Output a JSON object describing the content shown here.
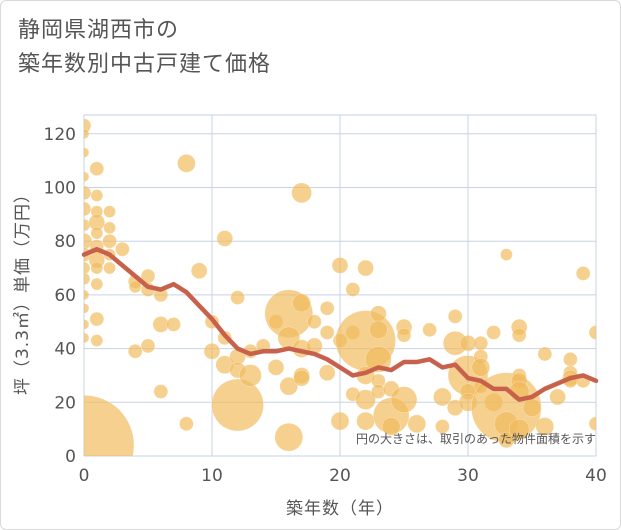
{
  "title_line1": "静岡県湖西市の",
  "title_line2": "築年数別中古戸建て価格",
  "chart_data": {
    "type": "scatter",
    "title": "静岡県湖西市の築年数別中古戸建て価格",
    "xlabel": "築年数（年）",
    "ylabel": "坪（3.3㎡）単価（万円）",
    "xlim": [
      0,
      40
    ],
    "ylim": [
      0,
      127
    ],
    "xticks": [
      "0",
      "10",
      "20",
      "30",
      "40"
    ],
    "yticks": [
      "0",
      "20",
      "40",
      "60",
      "80",
      "100",
      "120"
    ],
    "grid": true,
    "note": "円の大きさは、取引のあった物件面積を示す",
    "colors": {
      "bubble": "#f0b95a",
      "line": "#c8614b",
      "grid": "#c7d3e3",
      "text": "#555555"
    },
    "trend": {
      "name": "平均坪単価",
      "x": [
        0,
        1,
        2,
        3,
        4,
        5,
        6,
        7,
        8,
        9,
        10,
        11,
        12,
        13,
        14,
        15,
        16,
        17,
        18,
        19,
        20,
        21,
        22,
        23,
        24,
        25,
        26,
        27,
        28,
        29,
        30,
        31,
        32,
        33,
        34,
        35,
        36,
        37,
        38,
        39,
        40
      ],
      "y": [
        75,
        77,
        75,
        71,
        67,
        63,
        62,
        64,
        61,
        56,
        51,
        45,
        40,
        38,
        39,
        39,
        40,
        39,
        38,
        36,
        33,
        30,
        31,
        33,
        32,
        35,
        35,
        36,
        33,
        34,
        29,
        28,
        25,
        25,
        21,
        22,
        25,
        27,
        29,
        30,
        28
      ]
    },
    "bubbles": {
      "name": "取引",
      "points": [
        {
          "x": 0,
          "y": 4,
          "size": 50
        },
        {
          "x": 0,
          "y": 123,
          "size": 7
        },
        {
          "x": 0,
          "y": 120,
          "size": 5
        },
        {
          "x": 0,
          "y": 113,
          "size": 5
        },
        {
          "x": 0,
          "y": 104,
          "size": 5
        },
        {
          "x": 0,
          "y": 98,
          "size": 7
        },
        {
          "x": 0,
          "y": 92,
          "size": 7
        },
        {
          "x": 0,
          "y": 86,
          "size": 6
        },
        {
          "x": 0,
          "y": 80,
          "size": 8
        },
        {
          "x": 0,
          "y": 75,
          "size": 7
        },
        {
          "x": 0,
          "y": 70,
          "size": 6
        },
        {
          "x": 0,
          "y": 66,
          "size": 6
        },
        {
          "x": 0,
          "y": 60,
          "size": 5
        },
        {
          "x": 0,
          "y": 55,
          "size": 5
        },
        {
          "x": 0,
          "y": 49,
          "size": 5
        },
        {
          "x": 0,
          "y": 44,
          "size": 5
        },
        {
          "x": 1,
          "y": 107,
          "size": 7
        },
        {
          "x": 1,
          "y": 97,
          "size": 6
        },
        {
          "x": 1,
          "y": 91,
          "size": 6
        },
        {
          "x": 1,
          "y": 87,
          "size": 8
        },
        {
          "x": 1,
          "y": 83,
          "size": 6
        },
        {
          "x": 1,
          "y": 78,
          "size": 7
        },
        {
          "x": 1,
          "y": 73,
          "size": 8
        },
        {
          "x": 1,
          "y": 70,
          "size": 6
        },
        {
          "x": 1,
          "y": 64,
          "size": 6
        },
        {
          "x": 1,
          "y": 51,
          "size": 7
        },
        {
          "x": 1,
          "y": 43,
          "size": 6
        },
        {
          "x": 2,
          "y": 91,
          "size": 6
        },
        {
          "x": 2,
          "y": 85,
          "size": 6
        },
        {
          "x": 2,
          "y": 80,
          "size": 7
        },
        {
          "x": 2,
          "y": 75,
          "size": 6
        },
        {
          "x": 2,
          "y": 70,
          "size": 6
        },
        {
          "x": 3,
          "y": 77,
          "size": 7
        },
        {
          "x": 4,
          "y": 65,
          "size": 7
        },
        {
          "x": 4,
          "y": 63,
          "size": 6
        },
        {
          "x": 4,
          "y": 39,
          "size": 7
        },
        {
          "x": 5,
          "y": 67,
          "size": 7
        },
        {
          "x": 5,
          "y": 62,
          "size": 7
        },
        {
          "x": 5,
          "y": 41,
          "size": 7
        },
        {
          "x": 6,
          "y": 60,
          "size": 7
        },
        {
          "x": 6,
          "y": 49,
          "size": 8
        },
        {
          "x": 6,
          "y": 24,
          "size": 7
        },
        {
          "x": 7,
          "y": 49,
          "size": 7
        },
        {
          "x": 8,
          "y": 109,
          "size": 9
        },
        {
          "x": 8,
          "y": 12,
          "size": 7
        },
        {
          "x": 9,
          "y": 69,
          "size": 8
        },
        {
          "x": 10,
          "y": 50,
          "size": 7
        },
        {
          "x": 10,
          "y": 39,
          "size": 8
        },
        {
          "x": 11,
          "y": 81,
          "size": 8
        },
        {
          "x": 11,
          "y": 44,
          "size": 7
        },
        {
          "x": 11,
          "y": 34,
          "size": 9
        },
        {
          "x": 12,
          "y": 59,
          "size": 7
        },
        {
          "x": 12,
          "y": 37,
          "size": 8
        },
        {
          "x": 12,
          "y": 32,
          "size": 8
        },
        {
          "x": 12,
          "y": 19,
          "size": 26
        },
        {
          "x": 13,
          "y": 39,
          "size": 7
        },
        {
          "x": 13,
          "y": 30,
          "size": 11
        },
        {
          "x": 14,
          "y": 41,
          "size": 7
        },
        {
          "x": 15,
          "y": 50,
          "size": 7
        },
        {
          "x": 15,
          "y": 33,
          "size": 8
        },
        {
          "x": 16,
          "y": 53,
          "size": 24
        },
        {
          "x": 16,
          "y": 44,
          "size": 11
        },
        {
          "x": 16,
          "y": 26,
          "size": 9
        },
        {
          "x": 16,
          "y": 7,
          "size": 14
        },
        {
          "x": 17,
          "y": 98,
          "size": 10
        },
        {
          "x": 17,
          "y": 57,
          "size": 9
        },
        {
          "x": 17,
          "y": 40,
          "size": 9
        },
        {
          "x": 17,
          "y": 30,
          "size": 8
        },
        {
          "x": 17,
          "y": 29,
          "size": 8
        },
        {
          "x": 18,
          "y": 50,
          "size": 7
        },
        {
          "x": 18,
          "y": 41,
          "size": 8
        },
        {
          "x": 19,
          "y": 55,
          "size": 7
        },
        {
          "x": 19,
          "y": 46,
          "size": 7
        },
        {
          "x": 19,
          "y": 31,
          "size": 8
        },
        {
          "x": 20,
          "y": 71,
          "size": 8
        },
        {
          "x": 20,
          "y": 43,
          "size": 7
        },
        {
          "x": 20,
          "y": 13,
          "size": 9
        },
        {
          "x": 21,
          "y": 62,
          "size": 7
        },
        {
          "x": 21,
          "y": 46,
          "size": 7
        },
        {
          "x": 21,
          "y": 23,
          "size": 7
        },
        {
          "x": 22,
          "y": 70,
          "size": 8
        },
        {
          "x": 22,
          "y": 43,
          "size": 30
        },
        {
          "x": 22,
          "y": 30,
          "size": 9
        },
        {
          "x": 22,
          "y": 21,
          "size": 10
        },
        {
          "x": 22,
          "y": 13,
          "size": 9
        },
        {
          "x": 23,
          "y": 53,
          "size": 8
        },
        {
          "x": 23,
          "y": 47,
          "size": 9
        },
        {
          "x": 23,
          "y": 36,
          "size": 13
        },
        {
          "x": 23,
          "y": 28,
          "size": 7
        },
        {
          "x": 23,
          "y": 24,
          "size": 7
        },
        {
          "x": 24,
          "y": 25,
          "size": 8
        },
        {
          "x": 24,
          "y": 15,
          "size": 18
        },
        {
          "x": 24,
          "y": 11,
          "size": 9
        },
        {
          "x": 25,
          "y": 48,
          "size": 8
        },
        {
          "x": 25,
          "y": 45,
          "size": 7
        },
        {
          "x": 25,
          "y": 21,
          "size": 13
        },
        {
          "x": 26,
          "y": 12,
          "size": 9
        },
        {
          "x": 27,
          "y": 47,
          "size": 7
        },
        {
          "x": 28,
          "y": 22,
          "size": 9
        },
        {
          "x": 28,
          "y": 11,
          "size": 7
        },
        {
          "x": 29,
          "y": 52,
          "size": 7
        },
        {
          "x": 29,
          "y": 42,
          "size": 12
        },
        {
          "x": 29,
          "y": 18,
          "size": 8
        },
        {
          "x": 30,
          "y": 42,
          "size": 8
        },
        {
          "x": 30,
          "y": 30,
          "size": 20
        },
        {
          "x": 30,
          "y": 24,
          "size": 8
        },
        {
          "x": 30,
          "y": 20,
          "size": 9
        },
        {
          "x": 31,
          "y": 42,
          "size": 7
        },
        {
          "x": 31,
          "y": 37,
          "size": 7
        },
        {
          "x": 31,
          "y": 33,
          "size": 9
        },
        {
          "x": 31,
          "y": 26,
          "size": 7
        },
        {
          "x": 32,
          "y": 46,
          "size": 7
        },
        {
          "x": 32,
          "y": 20,
          "size": 9
        },
        {
          "x": 33,
          "y": 75,
          "size": 6
        },
        {
          "x": 33,
          "y": 18,
          "size": 35
        },
        {
          "x": 33,
          "y": 12,
          "size": 12
        },
        {
          "x": 33,
          "y": 6,
          "size": 8
        },
        {
          "x": 34,
          "y": 48,
          "size": 8
        },
        {
          "x": 34,
          "y": 45,
          "size": 7
        },
        {
          "x": 34,
          "y": 30,
          "size": 7
        },
        {
          "x": 34,
          "y": 28,
          "size": 8
        },
        {
          "x": 34,
          "y": 24,
          "size": 10
        },
        {
          "x": 34,
          "y": 10,
          "size": 10
        },
        {
          "x": 35,
          "y": 18,
          "size": 9
        },
        {
          "x": 36,
          "y": 38,
          "size": 7
        },
        {
          "x": 36,
          "y": 11,
          "size": 9
        },
        {
          "x": 37,
          "y": 22,
          "size": 8
        },
        {
          "x": 38,
          "y": 36,
          "size": 7
        },
        {
          "x": 38,
          "y": 31,
          "size": 7
        },
        {
          "x": 38,
          "y": 29,
          "size": 8
        },
        {
          "x": 38,
          "y": 28,
          "size": 7
        },
        {
          "x": 39,
          "y": 68,
          "size": 7
        },
        {
          "x": 39,
          "y": 28,
          "size": 7
        },
        {
          "x": 40,
          "y": 46,
          "size": 7
        },
        {
          "x": 40,
          "y": 12,
          "size": 7
        }
      ]
    }
  }
}
